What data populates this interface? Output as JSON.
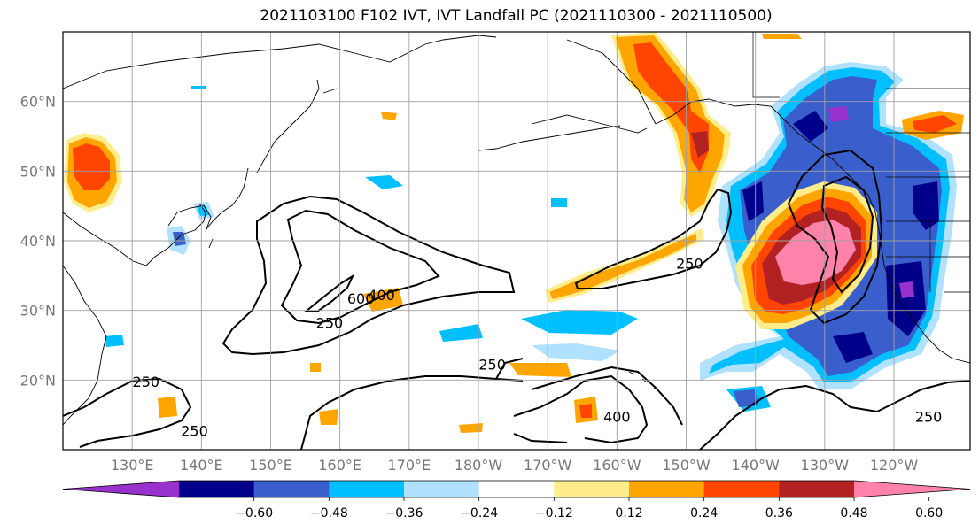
{
  "title": "2021103100 F102 IVT, IVT Landfall PC (2021110300 - 2021110500)",
  "chart_data": {
    "type": "filled-contour-map",
    "title": "2021103100 F102 IVT, IVT Landfall PC (2021110300 - 2021110500)",
    "projection": "PlateCarree",
    "lon_range": [
      120,
      251
    ],
    "lat_range": [
      10,
      70
    ],
    "grid": true,
    "xticks": [
      "130°E",
      "140°E",
      "150°E",
      "160°E",
      "170°E",
      "180°W",
      "170°W",
      "160°W",
      "150°W",
      "140°W",
      "130°W",
      "120°W"
    ],
    "xtick_lons": [
      130,
      140,
      150,
      160,
      170,
      180,
      190,
      200,
      210,
      220,
      230,
      240
    ],
    "yticks": [
      "20°N",
      "30°N",
      "40°N",
      "50°N",
      "60°N"
    ],
    "ytick_lats": [
      20,
      30,
      40,
      50,
      60
    ],
    "colorbar": {
      "orientation": "horizontal",
      "extend": "both",
      "levels": [
        -0.72,
        -0.6,
        -0.48,
        -0.36,
        -0.24,
        -0.12,
        0.12,
        0.24,
        0.36,
        0.48,
        0.6,
        0.72
      ],
      "tick_labels": [
        "−0.60",
        "−0.48",
        "−0.36",
        "−0.24",
        "−0.12",
        "0.12",
        "0.24",
        "0.36",
        "0.48",
        "0.60"
      ],
      "colors": [
        "#9932cc",
        "#00008b",
        "#3a5fcd",
        "#00bfff",
        "#b0e2ff",
        "#ffffff",
        "#ffec8b",
        "#ffa500",
        "#ff4500",
        "#b22222",
        "#ff82ab"
      ]
    },
    "ivt_contour_levels": [
      250,
      400,
      600
    ],
    "ivt_contour_labels": [
      {
        "text": "600",
        "lon": 163,
        "lat": 31
      },
      {
        "text": "400",
        "lon": 166,
        "lat": 31.5
      },
      {
        "text": "250",
        "lon": 158.5,
        "lat": 27.5
      },
      {
        "text": "250",
        "lon": 210.5,
        "lat": 36
      },
      {
        "text": "250",
        "lon": 182,
        "lat": 21.5
      },
      {
        "text": "250",
        "lon": 132,
        "lat": 19
      },
      {
        "text": "250",
        "lon": 139,
        "lat": 12
      },
      {
        "text": "400",
        "lon": 200,
        "lat": 14
      },
      {
        "text": "250",
        "lon": 245,
        "lat": 14
      }
    ]
  }
}
